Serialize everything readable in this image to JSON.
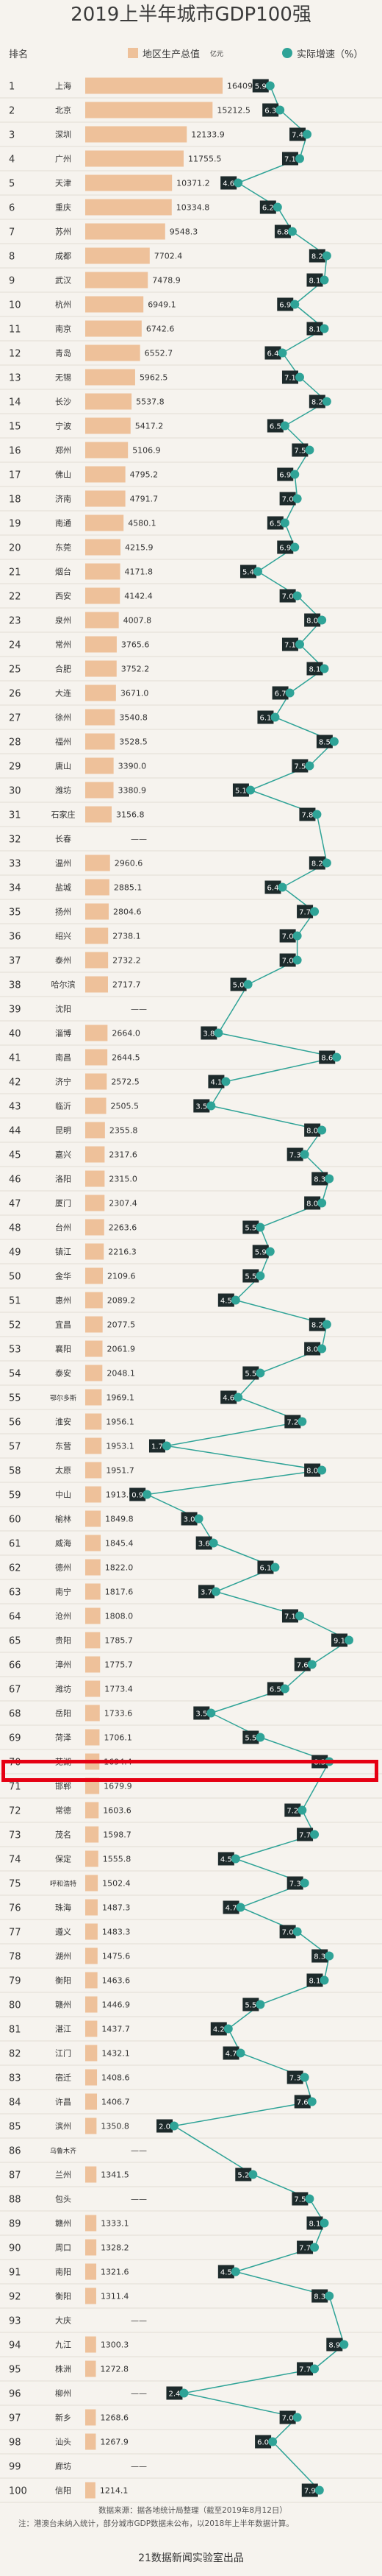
{
  "title": "2019上半年城市GDP100强",
  "header": {
    "rank_label": "排名",
    "gdp_legend": "地区生产总值",
    "gdp_unit": "亿元",
    "growth_legend": "实际增速（%）"
  },
  "colors": {
    "bar": "#eec19a",
    "bar_label_bg": "#dc7a3a",
    "growth_dot": "#2fa397",
    "growth_label_bg": "#1d2a2b"
  },
  "chart_data": {
    "type": "bar",
    "title": "2019上半年城市GDP100强",
    "ylabel": "地区生产总值（亿元）",
    "categories": [
      "上海",
      "北京",
      "深圳",
      "广州",
      "天津",
      "重庆",
      "苏州",
      "成都",
      "武汉",
      "杭州",
      "南京",
      "青岛",
      "无锡",
      "长沙",
      "宁波",
      "郑州",
      "佛山",
      "济南",
      "南通",
      "东莞",
      "烟台",
      "西安",
      "泉州",
      "常州",
      "合肥",
      "大连",
      "徐州",
      "福州",
      "唐山",
      "潍坊",
      "石家庄",
      "长春",
      "温州",
      "盐城",
      "扬州",
      "绍兴",
      "泰州",
      "哈尔滨",
      "沈阳",
      "淄博",
      "南昌",
      "济宁",
      "临沂",
      "昆明",
      "嘉兴",
      "洛阳",
      "厦门",
      "台州",
      "镇江",
      "金华",
      "惠州",
      "宜昌",
      "襄阳",
      "泰安",
      "鄂尔多斯",
      "淮安",
      "东营",
      "太原",
      "中山",
      "榆林",
      "威海",
      "德州",
      "南宁",
      "沧州",
      "贵阳",
      "漳州",
      "潍坊",
      "岳阳",
      "菏泽",
      "芜湖",
      "邯郸",
      "常德",
      "茂名",
      "保定",
      "呼和浩特",
      "珠海",
      "遵义",
      "湖州",
      "衡阳",
      "赣州",
      "湛江",
      "江门",
      "宿迁",
      "许昌",
      "滨州",
      "乌鲁木齐",
      "兰州",
      "包头",
      "赣州",
      "周口",
      "南阳",
      "衡阳",
      "大庆",
      "九江",
      "株洲",
      "柳州",
      "新乡",
      "汕头",
      "廊坊",
      "信阳"
    ],
    "series": [
      {
        "name": "地区生产总值",
        "values": [
          16409.9,
          15212.5,
          12133.9,
          11755.5,
          10371.2,
          10334.8,
          9548.3,
          7702.4,
          7478.9,
          6949.1,
          6742.6,
          6552.7,
          5962.5,
          5537.8,
          5417.2,
          5106.9,
          4795.2,
          4791.7,
          4580.1,
          4215.9,
          4171.8,
          4142.4,
          4007.8,
          3765.6,
          3752.2,
          3671.0,
          3540.8,
          3528.5,
          3390.0,
          3380.9,
          3156.8,
          null,
          2960.6,
          2885.1,
          2804.6,
          2738.1,
          2732.2,
          2717.7,
          null,
          2664.0,
          2644.5,
          2572.5,
          2505.5,
          2355.8,
          2317.6,
          2315.0,
          2307.4,
          2263.6,
          2216.3,
          2109.6,
          2089.2,
          2077.5,
          2061.9,
          2048.1,
          1969.1,
          1956.1,
          1953.1,
          1951.7,
          1913.9,
          1849.8,
          1845.4,
          1822.0,
          1817.6,
          1808.0,
          1785.7,
          1775.7,
          1773.4,
          1733.6,
          1706.1,
          1694.4,
          1679.9,
          1603.6,
          1598.7,
          1555.8,
          1502.4,
          1487.3,
          1483.3,
          1475.6,
          1463.6,
          1446.9,
          1437.7,
          1432.1,
          1408.6,
          1406.7,
          1350.8,
          null,
          1341.5,
          null,
          1333.1,
          1328.2,
          1321.6,
          1311.4,
          null,
          1300.3,
          1272.8,
          null,
          1268.6,
          1267.9,
          null,
          1214.1
        ]
      },
      {
        "name": "实际增速（%）",
        "values": [
          5.9,
          6.3,
          7.4,
          7.1,
          4.6,
          6.2,
          6.8,
          8.2,
          8.1,
          6.9,
          8.1,
          6.4,
          7.1,
          8.2,
          6.5,
          7.5,
          6.9,
          7.0,
          6.5,
          6.9,
          5.4,
          7.0,
          8.0,
          7.1,
          8.1,
          6.7,
          6.1,
          8.5,
          7.5,
          5.1,
          7.8,
          null,
          8.2,
          6.4,
          7.7,
          7.0,
          7.0,
          5.0,
          null,
          3.8,
          8.6,
          4.1,
          3.5,
          8.0,
          7.3,
          8.3,
          8.0,
          5.5,
          5.9,
          5.5,
          4.5,
          8.2,
          8.0,
          5.5,
          4.6,
          7.2,
          1.7,
          8.0,
          0.9,
          3.0,
          3.6,
          6.1,
          3.7,
          7.1,
          9.1,
          7.6,
          6.5,
          3.5,
          5.5,
          8.3,
          null,
          7.2,
          7.7,
          4.5,
          7.3,
          4.7,
          7.0,
          8.3,
          8.1,
          5.5,
          4.2,
          4.7,
          7.3,
          7.6,
          2.0,
          null,
          5.2,
          7.5,
          8.1,
          7.7,
          4.5,
          8.3,
          null,
          8.9,
          7.7,
          2.4,
          7.0,
          6.0,
          null,
          7.9
        ]
      }
    ],
    "rank_labels": [
      "1",
      "2",
      "3",
      "4",
      "5",
      "6",
      "7",
      "8",
      "9",
      "10",
      "11",
      "12",
      "13",
      "14",
      "15",
      "16",
      "17",
      "18",
      "19",
      "20",
      "21",
      "22",
      "23",
      "24",
      "25",
      "26",
      "27",
      "28",
      "29",
      "30",
      "31",
      "32",
      "33",
      "34",
      "35",
      "36",
      "37",
      "38",
      "39",
      "40",
      "41",
      "42",
      "43",
      "44",
      "45",
      "46",
      "47",
      "48",
      "49",
      "50",
      "51",
      "52",
      "53",
      "54",
      "55",
      "56",
      "57",
      "58",
      "59",
      "60",
      "61",
      "62",
      "63",
      "64",
      "65",
      "66",
      "67",
      "68",
      "69",
      "70",
      "71",
      "72",
      "73",
      "74",
      "75",
      "76",
      "77",
      "78",
      "79",
      "80",
      "81",
      "82",
      "83",
      "84",
      "85",
      "86",
      "87",
      "88",
      "89",
      "90",
      "91",
      "92",
      "93",
      "94",
      "95",
      "96",
      "97",
      "98",
      "99",
      "100"
    ],
    "missing_value_mark": "——",
    "highlighted_rank": "70",
    "xlim_gdp": [
      0,
      16409.9
    ],
    "xlim_growth": [
      0,
      9.1
    ]
  },
  "footer": {
    "source": "数据来源：据各地统计局整理（截至2019年8月12日）",
    "note": "注：港澳台未纳入统计，部分城市GDP数据未公布，以2018年上半年数据计算。",
    "credit": "21数据新闻实验室出品"
  }
}
